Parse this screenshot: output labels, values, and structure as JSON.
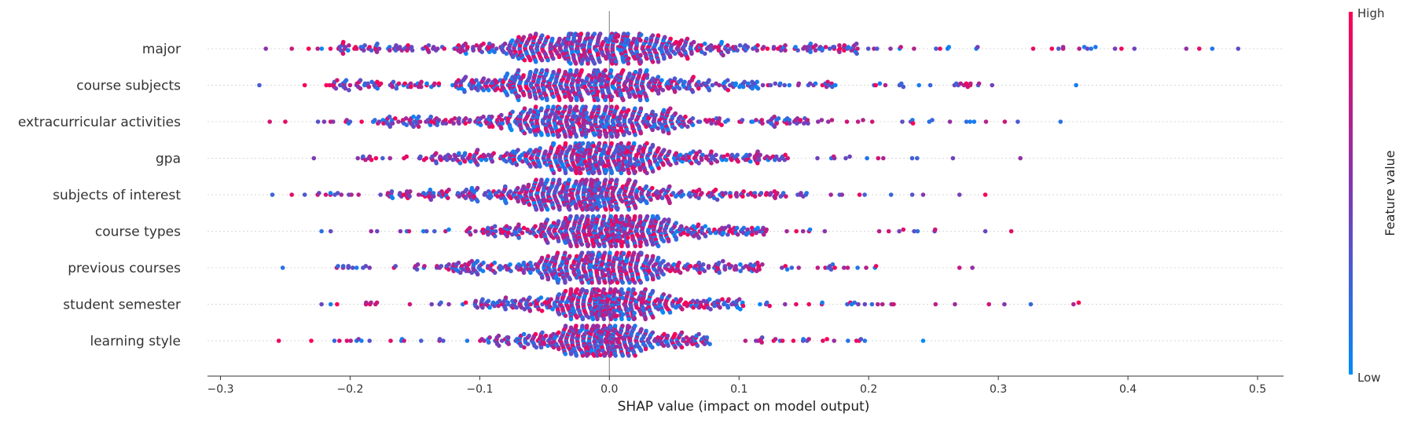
{
  "chart_data": {
    "type": "scatter",
    "subtype": "shap-beeswarm",
    "title": "",
    "xlabel": "SHAP value (impact on model output)",
    "ylabel": "",
    "xlim": [
      -0.31,
      0.52
    ],
    "x_ticks": [
      -0.3,
      -0.2,
      -0.1,
      0.0,
      0.1,
      0.2,
      0.3,
      0.4,
      0.5
    ],
    "x_tick_labels": [
      "−0.3",
      "−0.2",
      "−0.1",
      "0.0",
      "0.1",
      "0.2",
      "0.3",
      "0.4",
      "0.5"
    ],
    "grid": false,
    "colorbar": {
      "label": "Feature value",
      "high_label": "High",
      "low_label": "Low",
      "low_color": "#008bfb",
      "mid_color": "#7c3ab5",
      "high_color": "#ff0052"
    },
    "features": [
      {
        "name": "major",
        "min": -0.265,
        "max": 0.485,
        "core_halfwidth": 0.075,
        "dense_halfwidth": 0.155,
        "peak_x": -0.01,
        "outliers": [
          -0.265,
          -0.245,
          -0.232,
          -0.225,
          0.35,
          0.375,
          0.39,
          0.395,
          0.405,
          0.445,
          0.455,
          0.465,
          0.485
        ]
      },
      {
        "name": "course subjects",
        "min": -0.27,
        "max": 0.36,
        "core_halfwidth": 0.07,
        "dense_halfwidth": 0.15,
        "peak_x": -0.02,
        "outliers": [
          -0.27,
          -0.235,
          -0.21,
          -0.2,
          0.36
        ]
      },
      {
        "name": "extracurricular activities",
        "min": -0.262,
        "max": 0.348,
        "core_halfwidth": 0.065,
        "dense_halfwidth": 0.13,
        "peak_x": -0.015,
        "outliers": [
          -0.262,
          -0.25,
          -0.22,
          -0.2,
          0.305,
          0.315,
          0.348
        ]
      },
      {
        "name": "gpa",
        "min": -0.228,
        "max": 0.317,
        "core_halfwidth": 0.055,
        "dense_halfwidth": 0.11,
        "peak_x": -0.005,
        "outliers": [
          -0.228,
          -0.19,
          -0.18,
          0.265,
          0.317
        ]
      },
      {
        "name": "subjects of interest",
        "min": -0.26,
        "max": 0.29,
        "core_halfwidth": 0.05,
        "dense_halfwidth": 0.12,
        "peak_x": -0.02,
        "outliers": [
          -0.26,
          -0.245,
          -0.235,
          -0.225,
          0.27,
          0.29
        ]
      },
      {
        "name": "course types",
        "min": -0.222,
        "max": 0.31,
        "core_halfwidth": 0.045,
        "dense_halfwidth": 0.09,
        "peak_x": 0.005,
        "outliers": [
          -0.222,
          -0.215,
          0.29,
          0.31
        ]
      },
      {
        "name": "previous courses",
        "min": -0.252,
        "max": 0.28,
        "core_halfwidth": 0.045,
        "dense_halfwidth": 0.1,
        "peak_x": -0.005,
        "outliers": [
          -0.252,
          -0.195,
          -0.19,
          -0.185,
          0.27,
          0.28
        ]
      },
      {
        "name": "student semester",
        "min": -0.222,
        "max": 0.362,
        "core_halfwidth": 0.04,
        "dense_halfwidth": 0.08,
        "peak_x": 0.0,
        "outliers": [
          -0.222,
          -0.215,
          -0.21,
          0.325,
          0.358,
          0.362
        ]
      },
      {
        "name": "learning style",
        "min": -0.255,
        "max": 0.242,
        "core_halfwidth": 0.03,
        "dense_halfwidth": 0.065,
        "peak_x": -0.005,
        "outliers": [
          -0.255,
          -0.23,
          -0.195,
          -0.185,
          0.242
        ]
      }
    ]
  }
}
